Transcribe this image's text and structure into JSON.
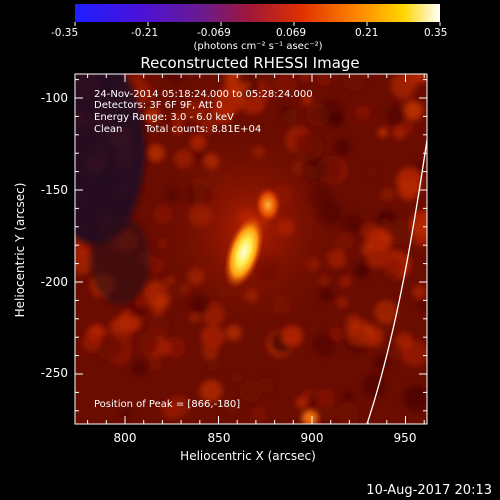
{
  "colorbar": {
    "tick_labels": [
      "-0.35",
      "-0.21",
      "-0.069",
      "0.069",
      "0.21",
      "0.35"
    ],
    "units": "(photons cm⁻² s⁻¹ asec⁻²)"
  },
  "title": "Reconstructed RHESSI Image",
  "annotation": {
    "time_range": "24-Nov-2014 05:18:24.000 to 05:28:24.000",
    "detectors": "Detectors: 3F 6F 9F, Att 0",
    "energy": "Energy Range: 3.0 - 6.0 keV",
    "clean": "Clean",
    "total_counts": "Total counts: 8.81E+04",
    "peak": "Position of Peak = [866,-180]"
  },
  "axes": {
    "xlabel": "Heliocentric X (arcsec)",
    "ylabel": "Heliocentric Y (arcsec)",
    "x_ticks": [
      "800",
      "850",
      "900",
      "950"
    ],
    "y_ticks": [
      "-100",
      "-150",
      "-200",
      "-250"
    ]
  },
  "footer": {
    "timestamp": "10-Aug-2017 20:13"
  },
  "colors": {
    "background": "#000000",
    "text": "#ffffff",
    "peak": "#ffff80",
    "limb": "#ffffff"
  }
}
